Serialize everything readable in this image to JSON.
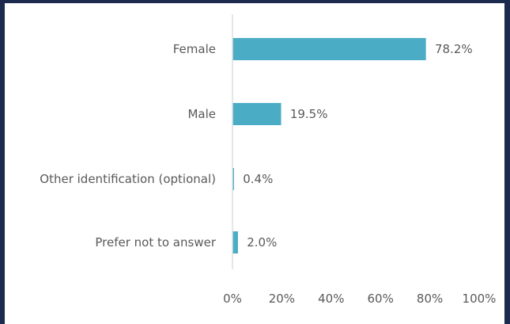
{
  "chart_data": {
    "type": "bar",
    "orientation": "horizontal",
    "categories": [
      "Female",
      "Male",
      "Other identification (optional)",
      "Prefer not to answer"
    ],
    "values": [
      78.2,
      19.5,
      0.4,
      2.0
    ],
    "value_labels": [
      "78.2%",
      "19.5%",
      "0.4%",
      "2.0%"
    ],
    "xlim": [
      0,
      100
    ],
    "x_ticks": [
      "0%",
      "20%",
      "40%",
      "60%",
      "80%",
      "100%"
    ],
    "grid": false,
    "legend": "none",
    "bar_color": "#4bacc6",
    "frame_color": "#1b2a4e",
    "text_color": "#595959"
  }
}
